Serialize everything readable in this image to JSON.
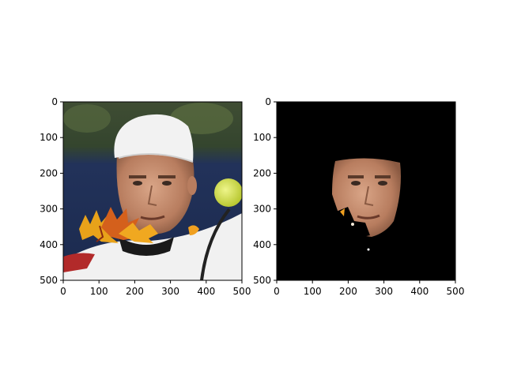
{
  "figure": {
    "panels": [
      {
        "name": "original-image-with-leaf-occlusion",
        "content": "photo",
        "x_ticks": [
          "0",
          "100",
          "200",
          "300",
          "400",
          "500"
        ],
        "y_ticks": [
          "0",
          "100",
          "200",
          "300",
          "400",
          "500"
        ],
        "xlim": [
          0,
          500
        ],
        "ylim": [
          500,
          0
        ]
      },
      {
        "name": "segmented-face-mask",
        "content": "masked-photo",
        "x_ticks": [
          "0",
          "100",
          "200",
          "300",
          "400",
          "500"
        ],
        "y_ticks": [
          "0",
          "100",
          "200",
          "300",
          "400",
          "500"
        ],
        "xlim": [
          0,
          500
        ],
        "ylim": [
          500,
          0
        ]
      }
    ],
    "colors": {
      "background_mask": "#000000",
      "leaf_primary": "#e8921a",
      "leaf_secondary": "#c8461a",
      "skin": "#c99070",
      "cap": "#f2f2f2",
      "tennis_ball": "#d9e84a",
      "backdrop_top": "#4a5a3a",
      "backdrop_bottom": "#1e2e52"
    }
  }
}
